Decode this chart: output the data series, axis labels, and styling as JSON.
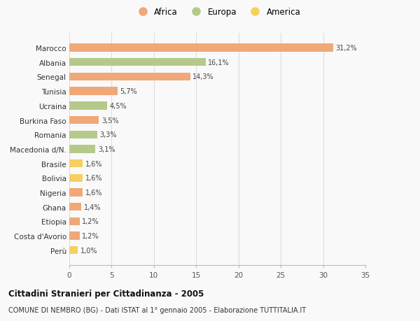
{
  "categories": [
    "Marocco",
    "Albania",
    "Senegal",
    "Tunisia",
    "Ucraina",
    "Burkina Faso",
    "Romania",
    "Macedonia d/N.",
    "Brasile",
    "Bolivia",
    "Nigeria",
    "Ghana",
    "Etiopia",
    "Costa d'Avorio",
    "Perù"
  ],
  "values": [
    31.2,
    16.1,
    14.3,
    5.7,
    4.5,
    3.5,
    3.3,
    3.1,
    1.6,
    1.6,
    1.6,
    1.4,
    1.2,
    1.2,
    1.0
  ],
  "labels": [
    "31,2%",
    "16,1%",
    "14,3%",
    "5,7%",
    "4,5%",
    "3,5%",
    "3,3%",
    "3,1%",
    "1,6%",
    "1,6%",
    "1,6%",
    "1,4%",
    "1,2%",
    "1,2%",
    "1,0%"
  ],
  "colors": [
    "#f0a878",
    "#b5c98a",
    "#f0a878",
    "#f0a878",
    "#b5c98a",
    "#f0a878",
    "#b5c98a",
    "#b5c98a",
    "#f5d060",
    "#f5d060",
    "#f0a878",
    "#f0a878",
    "#f0a878",
    "#f0a878",
    "#f5d060"
  ],
  "legend": [
    {
      "label": "Africa",
      "color": "#f0a878"
    },
    {
      "label": "Europa",
      "color": "#b5c98a"
    },
    {
      "label": "America",
      "color": "#f5d060"
    }
  ],
  "xlim": [
    0,
    35
  ],
  "xticks": [
    0,
    5,
    10,
    15,
    20,
    25,
    30,
    35
  ],
  "title": "Cittadini Stranieri per Cittadinanza - 2005",
  "subtitle": "COMUNE DI NEMBRO (BG) - Dati ISTAT al 1° gennaio 2005 - Elaborazione TUTTITALIA.IT",
  "bg_color": "#f9f9f9",
  "grid_color": "#dddddd"
}
